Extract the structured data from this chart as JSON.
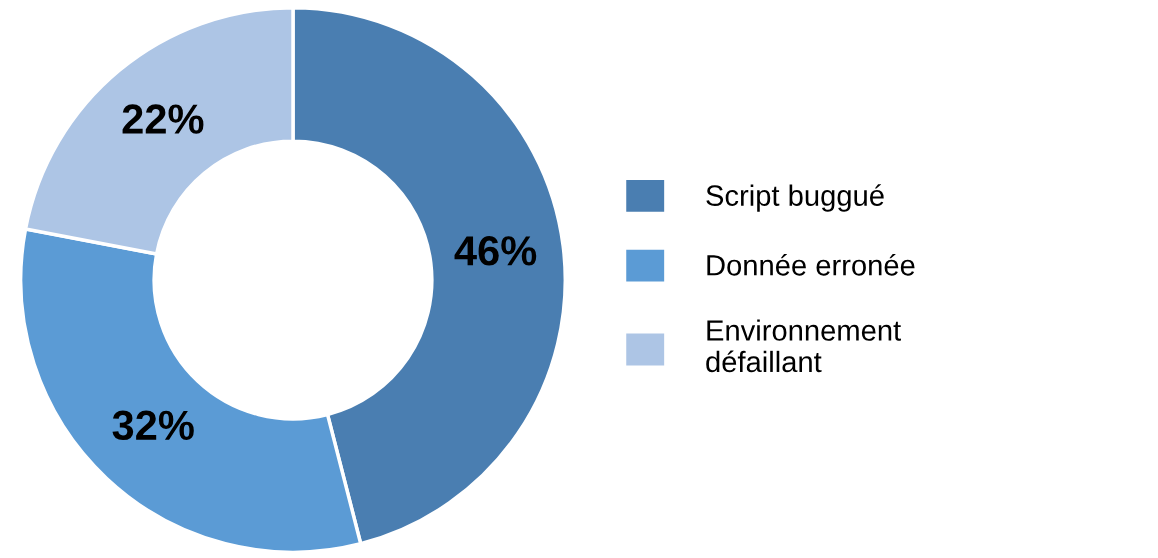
{
  "chart_data": {
    "type": "donut",
    "categories": [
      "Script buggué",
      "Donnée erronée",
      "Environnement\ndéfaillant"
    ],
    "values": [
      46,
      32,
      22
    ],
    "colors": [
      "#4a7eb1",
      "#5b9bd5",
      "#adc5e5"
    ],
    "value_labels": [
      "46%",
      "32%",
      "22%"
    ],
    "legend": "right"
  }
}
